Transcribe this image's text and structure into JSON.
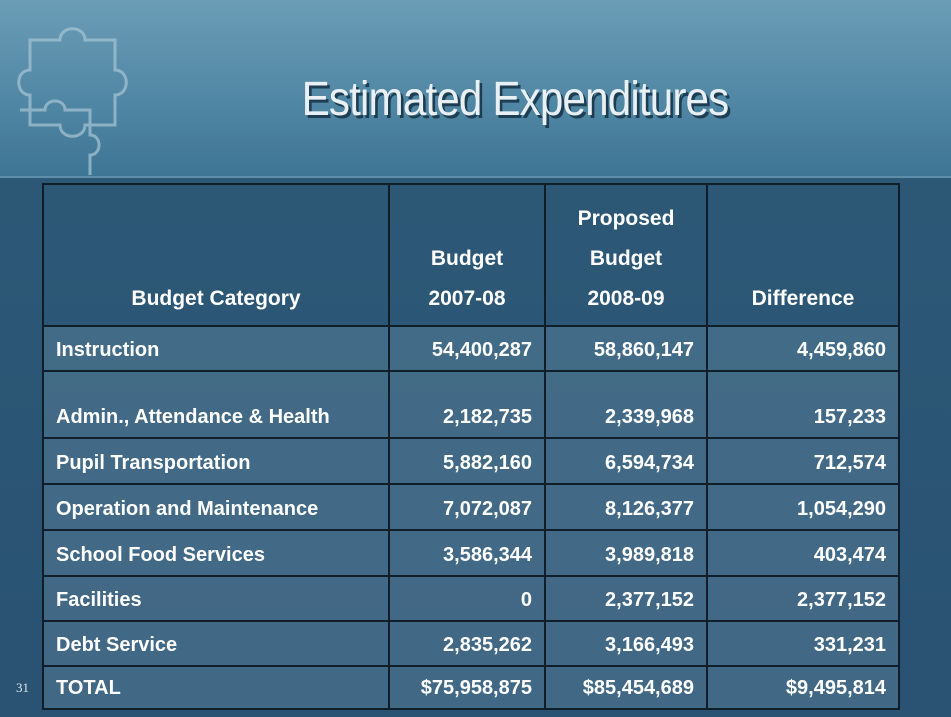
{
  "header": {
    "title": "Estimated Expenditures"
  },
  "table": {
    "columns": [
      [
        "Budget Category"
      ],
      [
        "Budget",
        "2007-08"
      ],
      [
        "Proposed",
        "Budget",
        "2008-09"
      ],
      [
        "Difference"
      ]
    ],
    "rows": [
      [
        "Instruction",
        "54,400,287",
        "58,860,147",
        "4,459,860"
      ],
      [
        "Admin., Attendance & Health",
        "2,182,735",
        "2,339,968",
        "157,233"
      ],
      [
        "Pupil Transportation",
        "5,882,160",
        "6,594,734",
        "712,574"
      ],
      [
        "Operation and Maintenance",
        "7,072,087",
        "8,126,377",
        "1,054,290"
      ],
      [
        "School Food Services",
        "3,586,344",
        "3,989,818",
        "403,474"
      ],
      [
        "Facilities",
        "0",
        "2,377,152",
        "2,377,152"
      ],
      [
        "Debt Service",
        "2,835,262",
        "3,166,493",
        "331,231"
      ],
      [
        "TOTAL",
        "$75,958,875",
        "$85,454,689",
        "$9,495,814"
      ]
    ]
  },
  "footer": {
    "page_number": "31"
  }
}
